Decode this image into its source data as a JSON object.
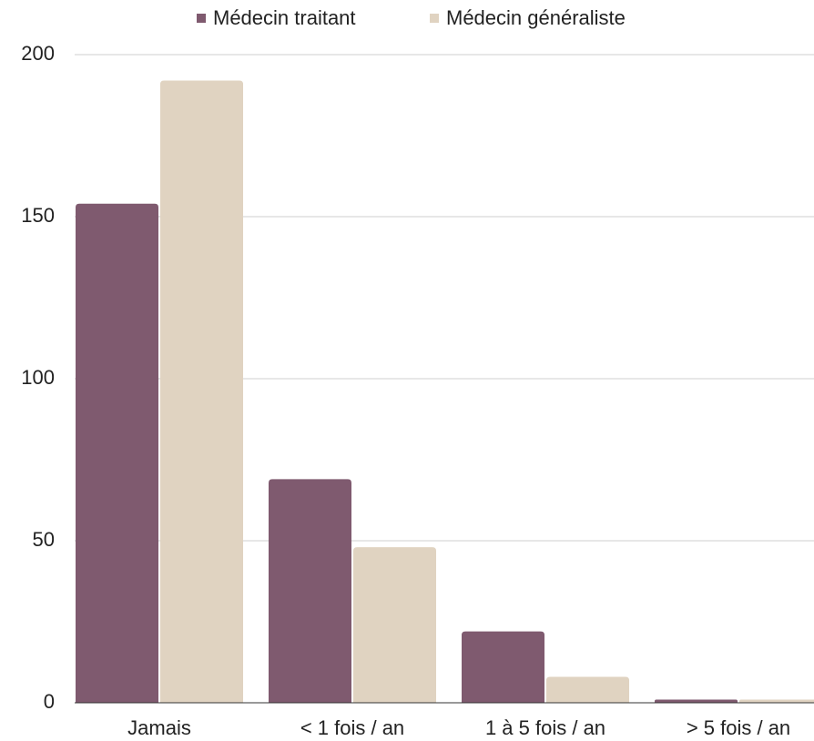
{
  "chart_data": {
    "type": "bar",
    "categories": [
      "Jamais",
      "< 1 fois / an",
      "1 à 5 fois / an",
      "> 5 fois / an"
    ],
    "series": [
      {
        "name": "Médecin traitant",
        "color": "#7f5a6f",
        "values": [
          154,
          69,
          22,
          1
        ]
      },
      {
        "name": "Médecin généraliste",
        "color": "#e0d3c1",
        "values": [
          192,
          48,
          8,
          1
        ]
      }
    ],
    "ylim": [
      0,
      200
    ],
    "yticks": [
      0,
      50,
      100,
      150,
      200
    ],
    "grid": true,
    "legend": "top"
  }
}
